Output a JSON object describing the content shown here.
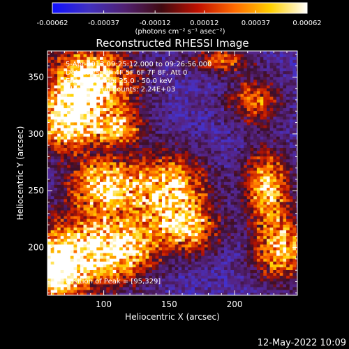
{
  "chart_data": {
    "type": "heatmap",
    "title": "Reconstructed RHESSI Image",
    "xlabel": "Heliocentric X (arcsec)",
    "ylabel": "Heliocentric Y (arcsec)",
    "xlim": [
      57,
      248
    ],
    "ylim": [
      158,
      373
    ],
    "xticks": [
      100,
      150,
      200
    ],
    "yticks": [
      200,
      250,
      300,
      350
    ],
    "colorbar": {
      "ticks": [
        "-0.00062",
        "-0.00037",
        "-0.00012",
        "0.00012",
        "0.00037",
        "0.00062"
      ],
      "unit_label": "(photons cm⁻² s⁻¹ asec⁻²)",
      "range": [
        -0.00062,
        0.00062
      ],
      "colors": [
        "#1010ff",
        "#4030c0",
        "#502070",
        "#400a10",
        "#c01000",
        "#ff6a00",
        "#ffd000",
        "#ffffff"
      ]
    },
    "annotations": {
      "time_range": "5-Apr-2013 09:25:12.000 to 09:26:56.000",
      "detectors": "Detectors: 3F 4F 5F 6F 7F 8F, Att 0",
      "energy_range": "Energy Range: 25.0 - 50.0 keV",
      "clean": "Clean    Total counts: 2.24E+03",
      "peak": "Position of Peak = [95,329]"
    },
    "peak": {
      "x": 95,
      "y": 329
    },
    "bright_regions": [
      {
        "x": 90,
        "y": 345,
        "sx": 22,
        "sy": 22,
        "amp": 1.0
      },
      {
        "x": 70,
        "y": 310,
        "sx": 14,
        "sy": 18,
        "amp": 0.8
      },
      {
        "x": 110,
        "y": 305,
        "sx": 14,
        "sy": 10,
        "amp": 0.6
      },
      {
        "x": 100,
        "y": 255,
        "sx": 18,
        "sy": 18,
        "amp": 0.75
      },
      {
        "x": 150,
        "y": 250,
        "sx": 20,
        "sy": 22,
        "amp": 0.8
      },
      {
        "x": 165,
        "y": 215,
        "sx": 16,
        "sy": 14,
        "amp": 0.6
      },
      {
        "x": 80,
        "y": 195,
        "sx": 24,
        "sy": 22,
        "amp": 0.9
      },
      {
        "x": 120,
        "y": 200,
        "sx": 16,
        "sy": 18,
        "amp": 0.6
      },
      {
        "x": 225,
        "y": 255,
        "sx": 12,
        "sy": 22,
        "amp": 0.7
      },
      {
        "x": 235,
        "y": 200,
        "sx": 14,
        "sy": 20,
        "amp": 0.7
      },
      {
        "x": 215,
        "y": 330,
        "sx": 14,
        "sy": 14,
        "amp": 0.5
      },
      {
        "x": 190,
        "y": 365,
        "sx": 16,
        "sy": 8,
        "amp": 0.45
      },
      {
        "x": 60,
        "y": 175,
        "sx": 12,
        "sy": 14,
        "amp": 0.8
      }
    ]
  },
  "footer": {
    "timestamp": "12-May-2022 10:09"
  }
}
